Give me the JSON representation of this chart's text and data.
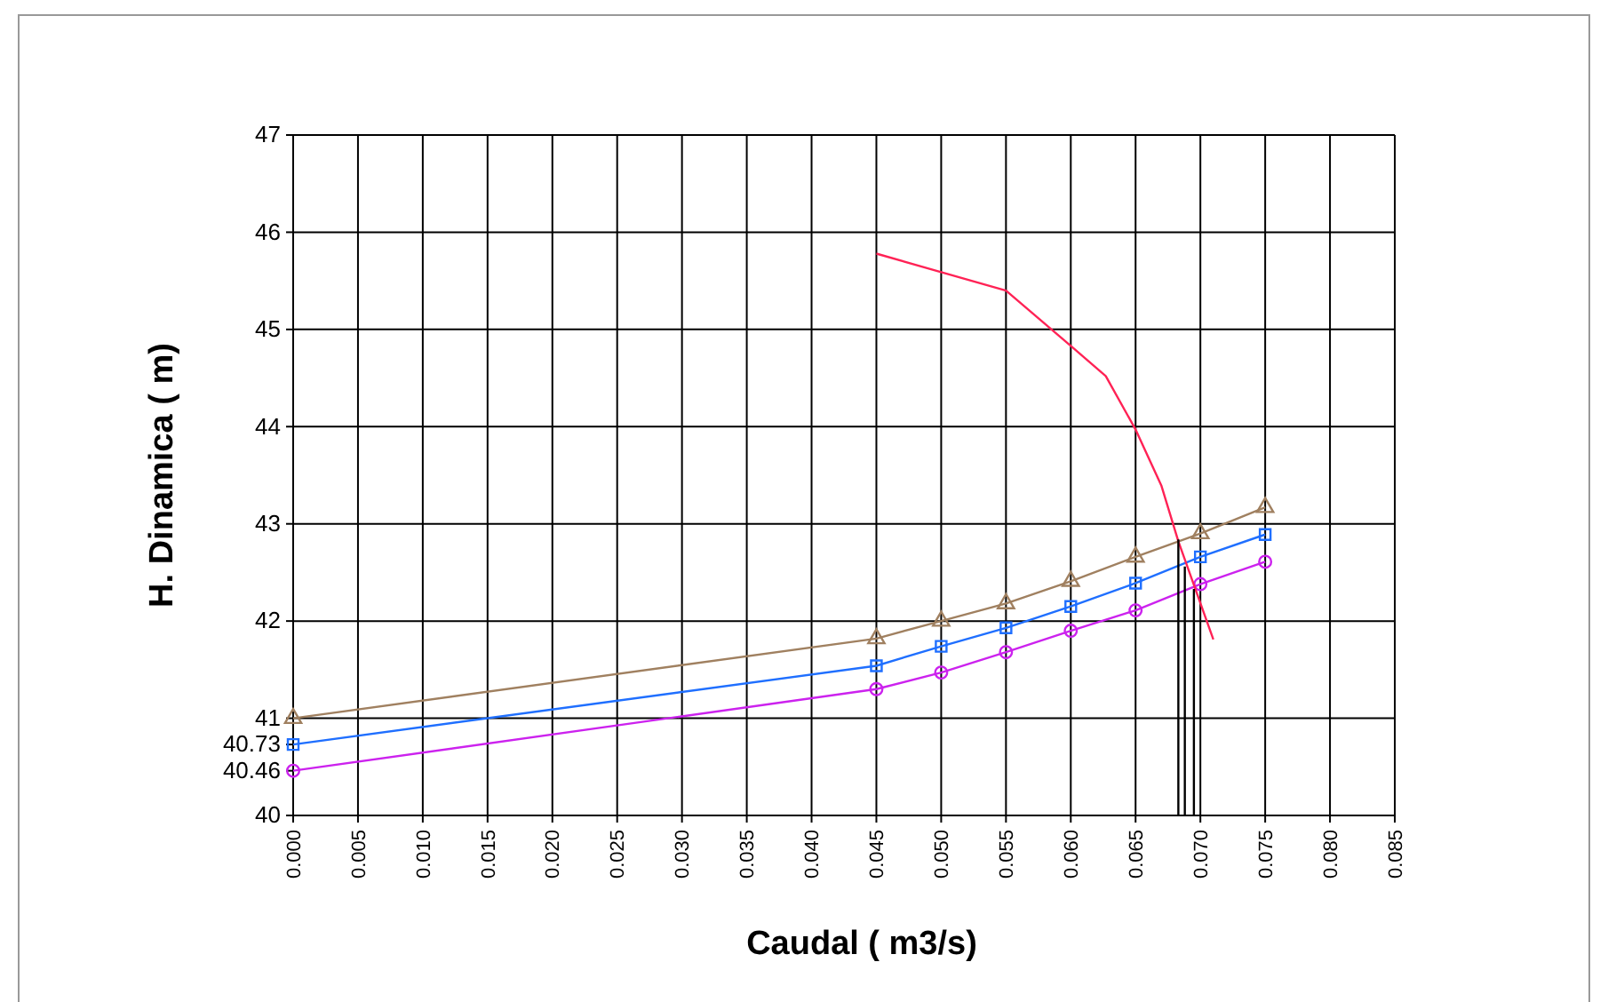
{
  "chart_data": {
    "type": "line",
    "xlabel": "Caudal ( m3/s)",
    "ylabel": "H. Dinamica ( m)",
    "xlim": [
      0,
      0.085
    ],
    "xticks": [
      {
        "value": 0,
        "label": "0.000"
      },
      {
        "value": 0.005,
        "label": "0.005"
      },
      {
        "value": 0.01,
        "label": "0.010"
      },
      {
        "value": 0.015,
        "label": "0.015"
      },
      {
        "value": 0.02,
        "label": "0.020"
      },
      {
        "value": 0.025,
        "label": "0.025"
      },
      {
        "value": 0.03,
        "label": "0.030"
      },
      {
        "value": 0.035,
        "label": "0.035"
      },
      {
        "value": 0.04,
        "label": "0.040"
      },
      {
        "value": 0.045,
        "label": "0.045"
      },
      {
        "value": 0.05,
        "label": "0.050"
      },
      {
        "value": 0.055,
        "label": "0.055"
      },
      {
        "value": 0.06,
        "label": "0.060"
      },
      {
        "value": 0.065,
        "label": "0.065"
      },
      {
        "value": 0.07,
        "label": "0.070"
      },
      {
        "value": 0.075,
        "label": "0.075"
      },
      {
        "value": 0.08,
        "label": "0.080"
      },
      {
        "value": 0.085,
        "label": "0.085"
      }
    ],
    "ylim": [
      40,
      47
    ],
    "yticks": [
      40,
      {
        "value": 40.46,
        "label": "40.46"
      },
      {
        "value": 40.73,
        "label": "40.73"
      },
      41,
      42,
      43,
      44,
      45,
      46,
      47
    ],
    "grid": true,
    "series": [
      {
        "color": "#a08060",
        "marker": "triangle",
        "x": [
          0,
          0.045,
          0.05,
          0.055,
          0.06,
          0.065,
          0.07,
          0.075
        ],
        "values": [
          41.0,
          41.82,
          42.0,
          42.18,
          42.41,
          42.66,
          42.9,
          43.17
        ]
      },
      {
        "color": "#1f6fff",
        "marker": "square",
        "x": [
          0,
          0.045,
          0.05,
          0.055,
          0.06,
          0.065,
          0.07,
          0.075
        ],
        "values": [
          40.73,
          41.54,
          41.74,
          41.93,
          42.15,
          42.39,
          42.66,
          42.89
        ]
      },
      {
        "color": "#cc22ee",
        "marker": "circle",
        "x": [
          0,
          0.045,
          0.05,
          0.055,
          0.06,
          0.065,
          0.07,
          0.075
        ],
        "values": [
          40.46,
          41.3,
          41.47,
          41.68,
          41.9,
          42.11,
          42.38,
          42.61
        ]
      },
      {
        "color": "#ff2255",
        "marker": "none",
        "x": [
          0.045,
          0.05,
          0.055,
          0.06,
          0.0627,
          0.065,
          0.067,
          0.0683,
          0.071
        ],
        "values": [
          45.78,
          45.59,
          45.4,
          44.83,
          44.52,
          43.97,
          43.39,
          42.82,
          41.81
        ]
      },
      {
        "color": "#000000",
        "marker": "none",
        "x": [
          0.0683,
          0.0683
        ],
        "values": [
          40,
          42.84
        ]
      },
      {
        "color": "#000000",
        "marker": "none",
        "x": [
          0.0688,
          0.0688
        ],
        "values": [
          40,
          42.56
        ]
      },
      {
        "color": "#000000",
        "marker": "none",
        "x": [
          0.0695,
          0.0695
        ],
        "values": [
          40,
          42.33
        ]
      }
    ]
  }
}
